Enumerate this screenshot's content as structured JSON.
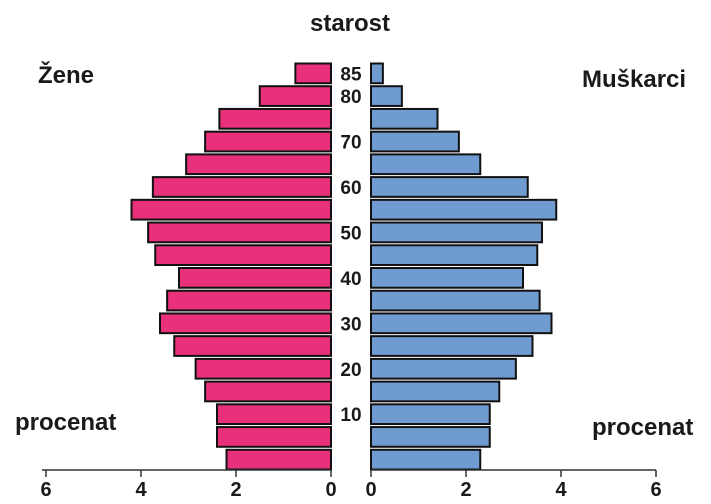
{
  "chart_data": {
    "type": "bar",
    "title": "starost",
    "left_series": {
      "name": "Žene",
      "color": "#e8317a",
      "values": [
        2.2,
        2.4,
        2.4,
        2.65,
        2.85,
        3.3,
        3.6,
        3.45,
        3.2,
        3.7,
        3.85,
        4.2,
        3.75,
        3.05,
        2.65,
        2.35,
        1.5,
        0.75
      ]
    },
    "right_series": {
      "name": "Muškarci",
      "color": "#6f9bd0",
      "values": [
        2.3,
        2.5,
        2.5,
        2.7,
        3.05,
        3.4,
        3.8,
        3.55,
        3.2,
        3.5,
        3.6,
        3.9,
        3.3,
        2.3,
        1.85,
        1.4,
        0.65,
        0.25
      ]
    },
    "age_tick_labels": [
      "10",
      "20",
      "30",
      "40",
      "50",
      "60",
      "70",
      "80",
      "85"
    ],
    "x_ticks_left": [
      "6",
      "4",
      "2",
      "0"
    ],
    "x_ticks_right": [
      "0",
      "2",
      "4",
      "6"
    ],
    "xlabel_left": "procenat",
    "xlabel_right": "procenat",
    "xlim": [
      0,
      6
    ]
  }
}
